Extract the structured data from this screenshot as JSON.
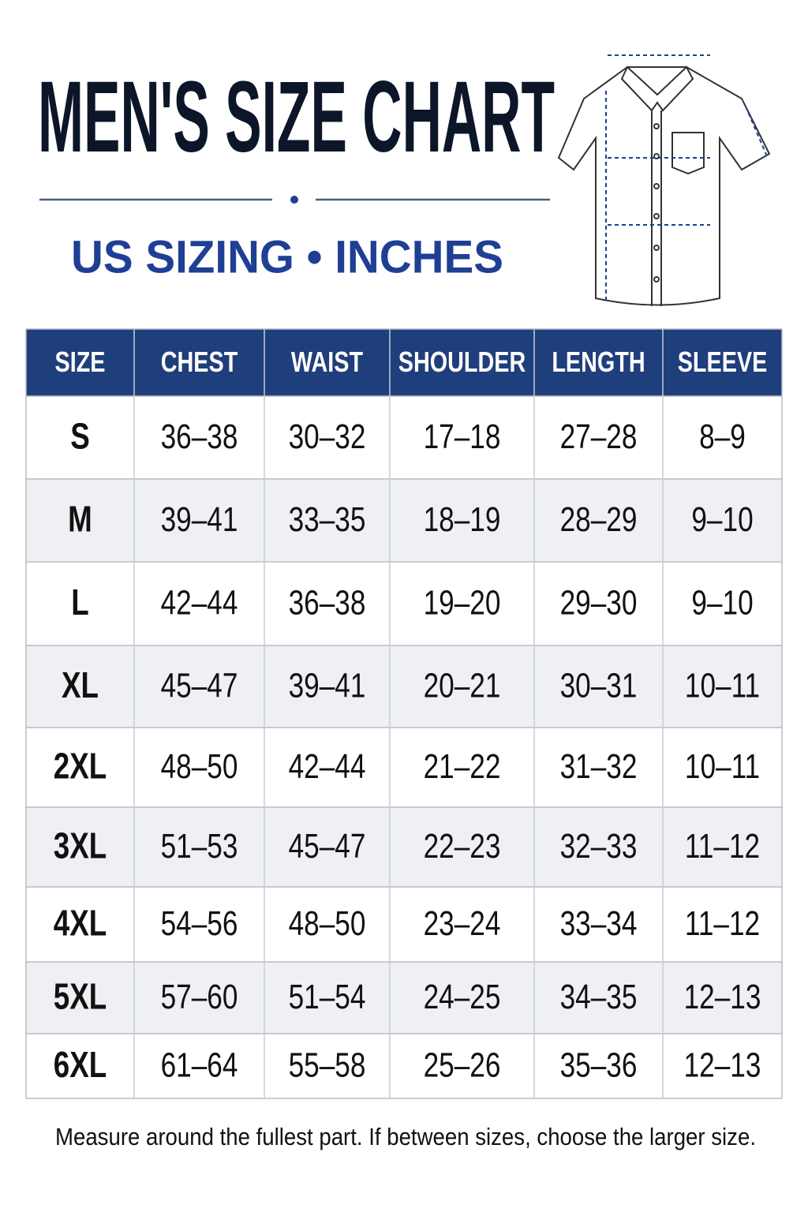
{
  "header": {
    "title": "MEN'S SIZE CHART",
    "subtitle": "US SIZING • INCHES"
  },
  "table": {
    "columns": [
      "SIZE",
      "CHEST",
      "WAIST",
      "SHOULDER",
      "LENGTH",
      "SLEEVE"
    ],
    "rows": [
      [
        "S",
        "36–38",
        "30–32",
        "17–18",
        "27–28",
        "8–9"
      ],
      [
        "M",
        "39–41",
        "33–35",
        "18–19",
        "28–29",
        "9–10"
      ],
      [
        "L",
        "42–44",
        "36–38",
        "19–20",
        "29–30",
        "9–10"
      ],
      [
        "XL",
        "45–47",
        "39–41",
        "20–21",
        "30–31",
        "10–11"
      ],
      [
        "2XL",
        "48–50",
        "42–44",
        "21–22",
        "31–32",
        "10–11"
      ],
      [
        "3XL",
        "51–53",
        "45–47",
        "22–23",
        "32–33",
        "11–12"
      ],
      [
        "4XL",
        "54–56",
        "48–50",
        "23–24",
        "33–34",
        "11–12"
      ],
      [
        "5XL",
        "57–60",
        "51–54",
        "24–25",
        "34–35",
        "12–13"
      ],
      [
        "6XL",
        "61–64",
        "55–58",
        "25–26",
        "35–36",
        "12–13"
      ]
    ]
  },
  "footer": {
    "note": "Measure around the fullest part. If between sizes, choose the larger size."
  }
}
